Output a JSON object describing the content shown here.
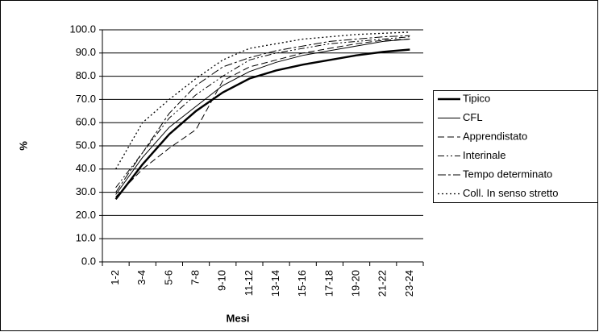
{
  "chart_data": {
    "type": "line",
    "xlabel": "Mesi",
    "ylabel": "%",
    "categories": [
      "1-2",
      "3-4",
      "5-6",
      "7-8",
      "9-10",
      "11-12",
      "13-14",
      "15-16",
      "17-18",
      "19-20",
      "21-22",
      "23-24"
    ],
    "series": [
      {
        "name": "Tipico",
        "color": "#000000",
        "line_style": "solid-thick",
        "values": [
          27,
          42,
          55,
          65,
          73,
          79,
          82.5,
          85,
          87,
          89,
          90.5,
          91.5
        ]
      },
      {
        "name": "CFL",
        "color": "#000000",
        "line_style": "solid",
        "values": [
          29,
          45,
          58,
          67,
          76,
          82,
          86,
          89,
          91,
          93,
          95,
          96
        ]
      },
      {
        "name": "Apprendistato",
        "color": "#000000",
        "line_style": "dashed",
        "values": [
          28,
          40,
          49,
          57,
          78,
          84,
          87,
          90,
          92,
          94,
          95.5,
          96
        ]
      },
      {
        "name": "Interinale",
        "color": "#000000",
        "line_style": "dash-dot-dot",
        "values": [
          32,
          47,
          62,
          72,
          80,
          87,
          90,
          92,
          94,
          95,
          96,
          97
        ]
      },
      {
        "name": "Tempo determinato",
        "color": "#000000",
        "line_style": "dash-dot",
        "values": [
          30,
          47,
          64,
          76,
          84,
          88,
          91,
          93,
          95,
          96,
          97,
          97.5
        ]
      },
      {
        "name": "Coll. In senso stretto",
        "color": "#000000",
        "line_style": "dotted",
        "values": [
          40,
          60,
          70,
          79,
          87,
          92,
          94,
          96,
          97,
          98,
          98.5,
          99
        ]
      }
    ],
    "ylim": [
      0,
      100
    ],
    "yticks": [
      {
        "value": 0,
        "label": "0.0"
      },
      {
        "value": 10,
        "label": "10.0"
      },
      {
        "value": 20,
        "label": "20.0"
      },
      {
        "value": 30,
        "label": "30.0"
      },
      {
        "value": 40,
        "label": "40.0"
      },
      {
        "value": 50,
        "label": "50.0"
      },
      {
        "value": 60,
        "label": "60.0"
      },
      {
        "value": 70,
        "label": "70.0"
      },
      {
        "value": 80,
        "label": "80.0"
      },
      {
        "value": 90,
        "label": "90.0"
      },
      {
        "value": 100,
        "label": "100.0"
      }
    ],
    "grid": true,
    "legend": "right"
  }
}
